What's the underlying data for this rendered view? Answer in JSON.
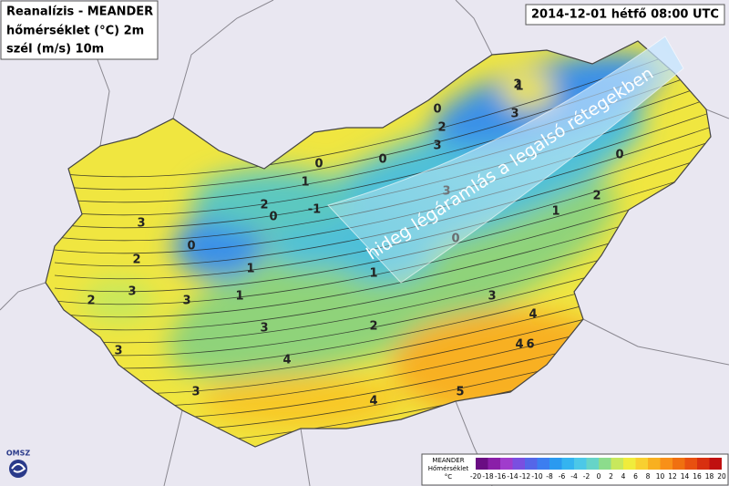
{
  "header": {
    "lines": [
      "Reanalízis - MEANDER",
      "hőmérséklet (°C) 2m",
      "szél (m/s) 10m"
    ],
    "timestamp": "2014-12-01 hétfő 08:00 UTC"
  },
  "annotation": "hideg légáramlás a legalsó rétegekben",
  "logo": "OMSZ",
  "legend": {
    "title": [
      "MEANDER",
      "Hőmérséklet",
      "°C"
    ],
    "ticks": [
      -20,
      -18,
      -16,
      -14,
      -12,
      -10,
      -8,
      -6,
      -4,
      -2,
      0,
      2,
      4,
      6,
      8,
      10,
      12,
      14,
      16,
      18,
      20
    ],
    "colors": [
      "#6a0d83",
      "#8a1fa8",
      "#a03ccc",
      "#7a4fe0",
      "#5566e8",
      "#3c7ef0",
      "#2a9af0",
      "#34b4f0",
      "#4cc8e8",
      "#66d4c8",
      "#8cdc8c",
      "#c8e85c",
      "#f0ec3c",
      "#f8d030",
      "#f8b020",
      "#f89018",
      "#f07010",
      "#e85010",
      "#d83010",
      "#c01010"
    ]
  },
  "contour_labels": [
    1,
    2,
    3,
    0,
    -1,
    0,
    1,
    1,
    0,
    1,
    2,
    3,
    3,
    2,
    2,
    3,
    3,
    3,
    4,
    3,
    2,
    0,
    1,
    2,
    3,
    4,
    6,
    4,
    5,
    3,
    4,
    0,
    2,
    3,
    1,
    0,
    0
  ]
}
